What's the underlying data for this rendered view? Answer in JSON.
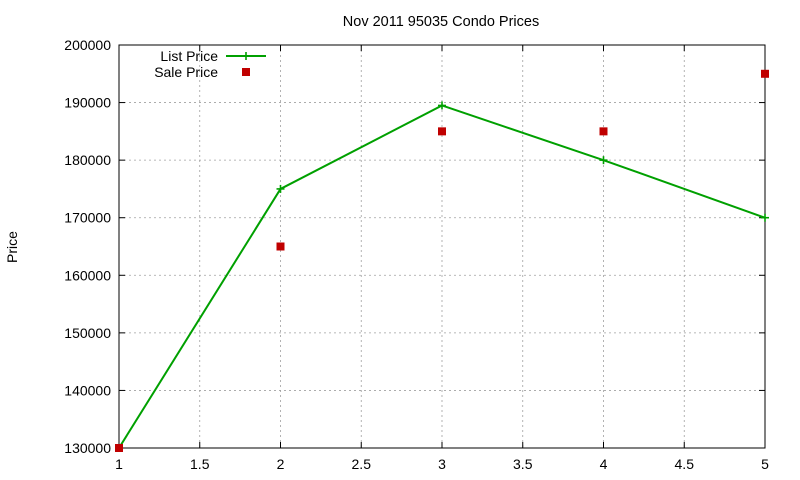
{
  "chart_data": {
    "type": "line",
    "title": "Nov 2011 95035 Condo Prices",
    "xlabel": "",
    "ylabel": "Price",
    "xlim": [
      1,
      5
    ],
    "ylim": [
      130000,
      200000
    ],
    "x_ticks": [
      "1",
      "1.5",
      "2",
      "2.5",
      "3",
      "3.5",
      "4",
      "4.5",
      "5"
    ],
    "x_tick_values": [
      1,
      1.5,
      2,
      2.5,
      3,
      3.5,
      4,
      4.5,
      5
    ],
    "y_ticks": [
      "130000",
      "140000",
      "150000",
      "160000",
      "170000",
      "180000",
      "190000",
      "200000"
    ],
    "y_tick_values": [
      130000,
      140000,
      150000,
      160000,
      170000,
      180000,
      190000,
      200000
    ],
    "grid": true,
    "legend_position": "top-left",
    "series": [
      {
        "name": "List Price",
        "style": "lines+points",
        "marker": "plus",
        "color": "#00a000",
        "x": [
          1,
          2,
          3,
          4,
          5
        ],
        "y": [
          130000,
          175000,
          189500,
          180000,
          170000
        ]
      },
      {
        "name": "Sale Price",
        "style": "points",
        "marker": "square",
        "color": "#c00000",
        "x": [
          1,
          2,
          3,
          4,
          5
        ],
        "y": [
          130000,
          165000,
          185000,
          185000,
          195000
        ]
      }
    ]
  }
}
